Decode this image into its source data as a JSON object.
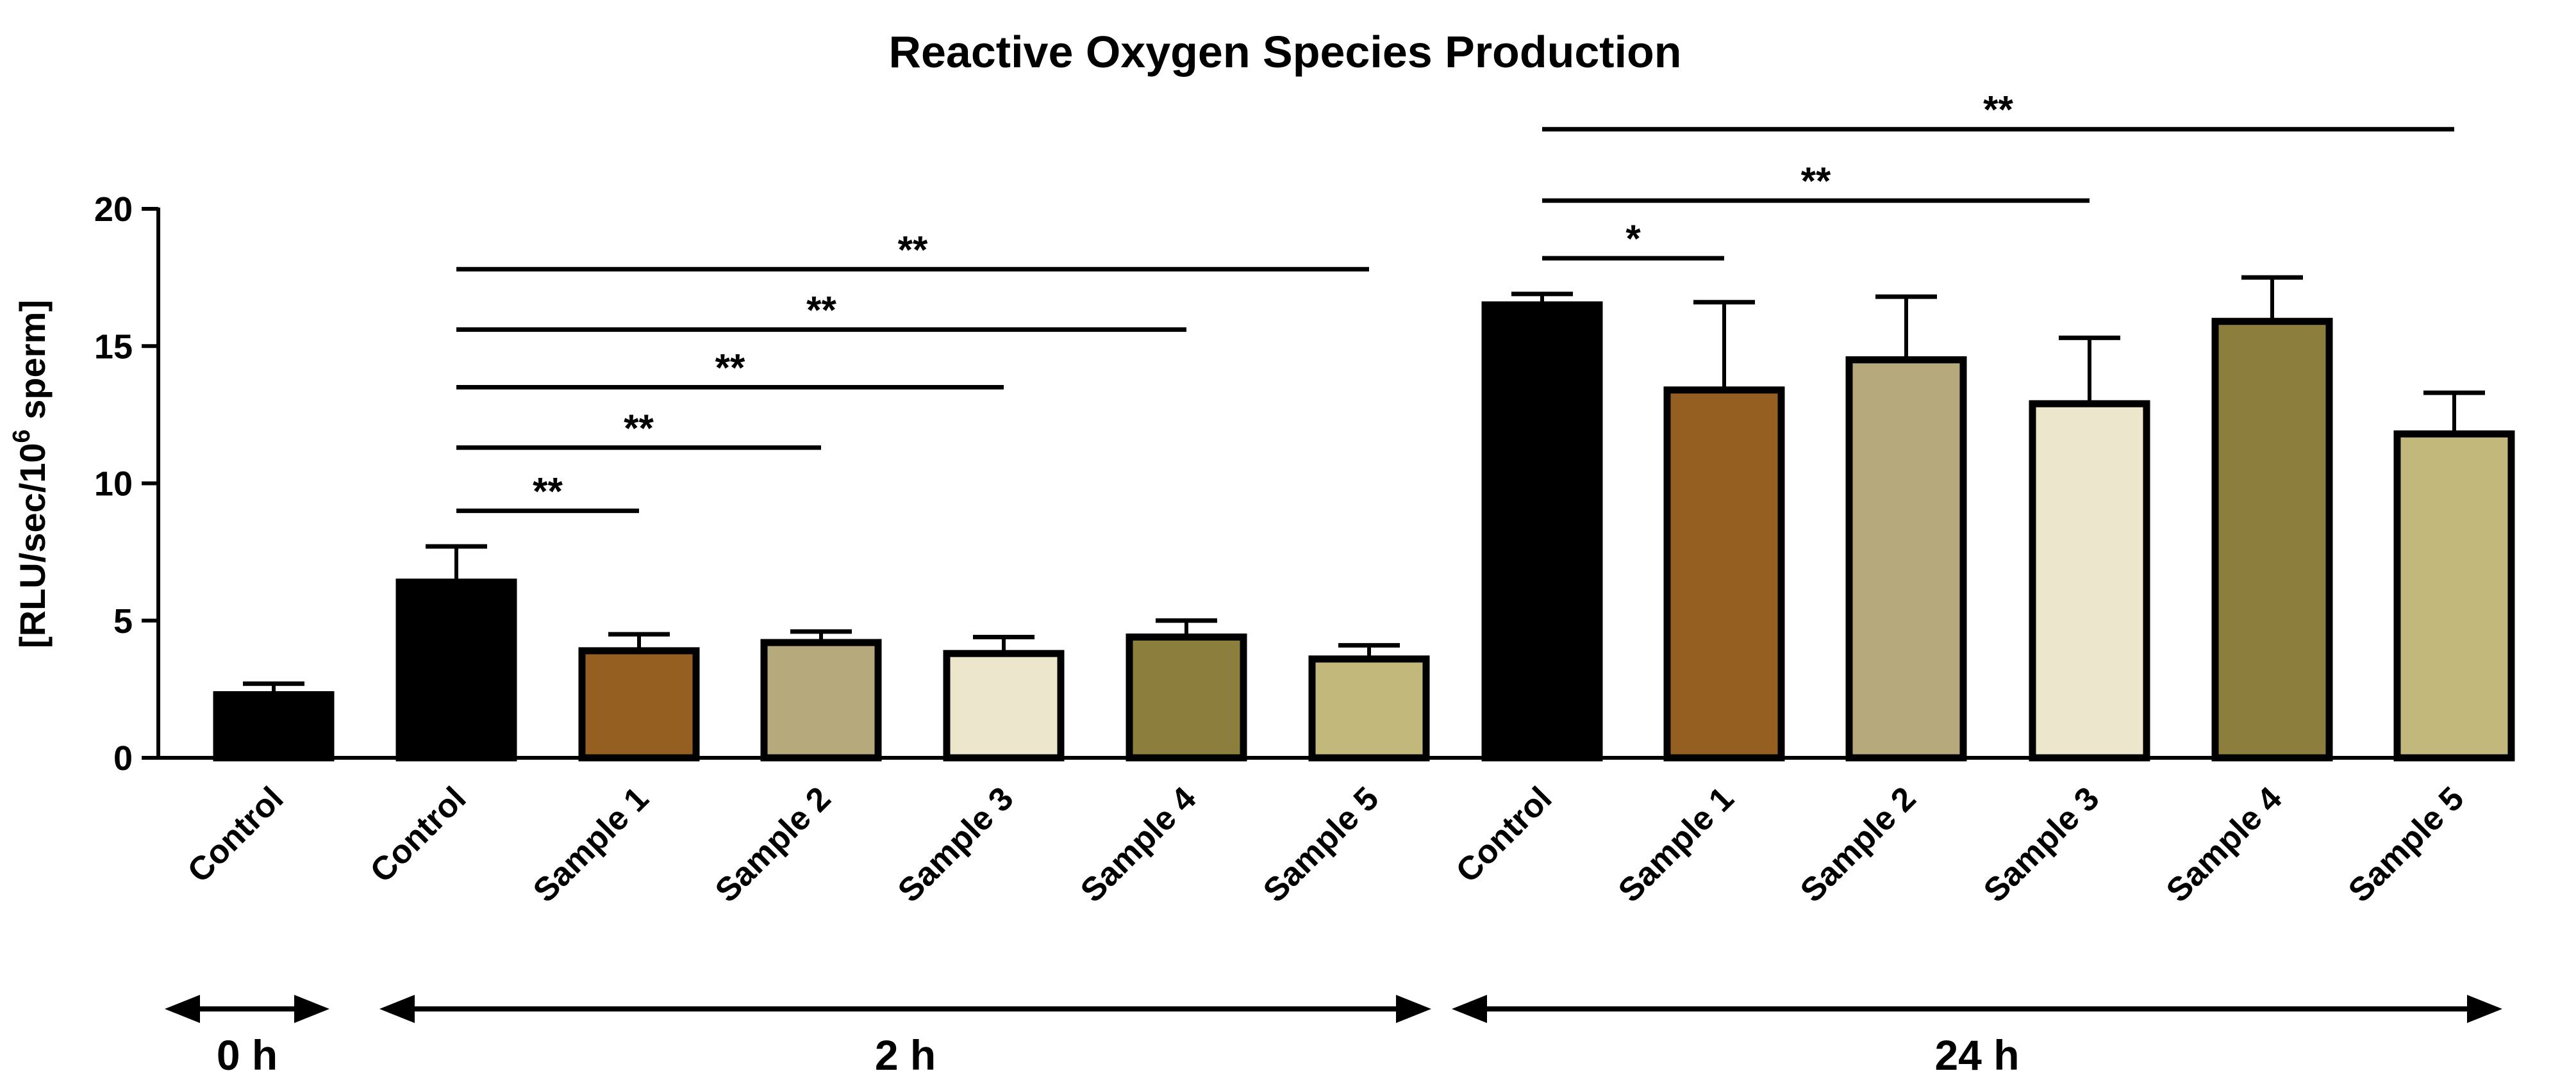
{
  "chart_data": {
    "type": "bar",
    "title": "Reactive Oxygen Species Production",
    "ylabel": {
      "main": "[RLU/sec/10",
      "superscript": "6",
      "tail": " sperm]"
    },
    "xlabel": "",
    "ylim": [
      0,
      20
    ],
    "yticks": [
      0,
      5,
      10,
      15,
      20
    ],
    "grid": false,
    "categories": [
      "Control",
      "Control",
      "Sample 1",
      "Sample 2",
      "Sample 3",
      "Sample 4",
      "Sample 5",
      "Control",
      "Sample 1",
      "Sample 2",
      "Sample 3",
      "Sample 4",
      "Sample 5"
    ],
    "values": [
      2.3,
      6.4,
      3.9,
      4.2,
      3.8,
      4.4,
      3.6,
      16.5,
      13.4,
      14.5,
      12.9,
      15.9,
      11.8
    ],
    "errors": [
      0.4,
      1.3,
      0.6,
      0.4,
      0.6,
      0.6,
      0.5,
      0.4,
      3.2,
      2.3,
      2.4,
      1.6,
      1.5
    ],
    "colors": [
      "#000000",
      "#000000",
      "#965f22",
      "#b6a97b",
      "#ece6cd",
      "#8c7f3d",
      "#c3b87c",
      "#000000",
      "#965f22",
      "#b6a97b",
      "#ece6cd",
      "#8c7f3d",
      "#c3b87c"
    ],
    "significance": [
      {
        "from": 1,
        "to": 2,
        "label": "**",
        "y": 9.0
      },
      {
        "from": 1,
        "to": 3,
        "label": "**",
        "y": 11.3
      },
      {
        "from": 1,
        "to": 4,
        "label": "**",
        "y": 13.5
      },
      {
        "from": 1,
        "to": 5,
        "label": "**",
        "y": 15.6
      },
      {
        "from": 1,
        "to": 6,
        "label": "**",
        "y": 17.8
      },
      {
        "from": 7,
        "to": 8,
        "label": "*",
        "y": 18.2
      },
      {
        "from": 7,
        "to": 10,
        "label": "**",
        "y": 20.3
      },
      {
        "from": 7,
        "to": 12,
        "label": "**",
        "y": 22.9
      }
    ],
    "time_groups": [
      {
        "label": "0 h",
        "from": 0,
        "to": 0
      },
      {
        "label": "2 h",
        "from": 1,
        "to": 6
      },
      {
        "label": "24 h",
        "from": 7,
        "to": 12
      }
    ]
  }
}
